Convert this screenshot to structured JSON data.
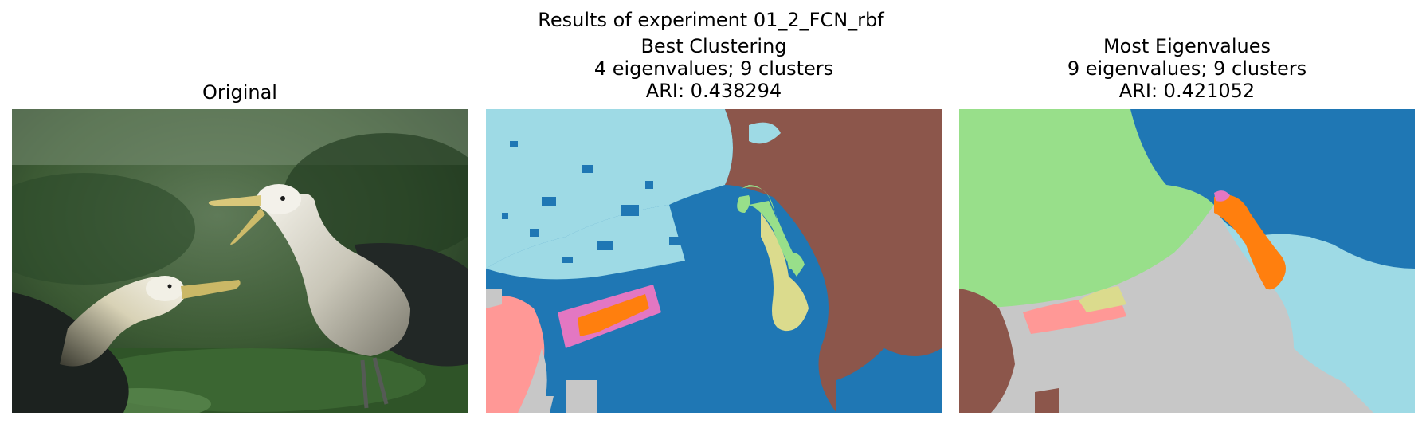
{
  "figure": {
    "suptitle": "Results of experiment 01_2_FCN_rbf"
  },
  "panels": [
    {
      "title_lines": [
        "Original"
      ]
    },
    {
      "title_lines": [
        "Best Clustering",
        "4 eigenvalues; 9 clusters",
        "ARI: 0.438294"
      ]
    },
    {
      "title_lines": [
        "Most Eigenvalues",
        "9 eigenvalues; 9 clusters",
        "ARI: 0.421052"
      ]
    }
  ],
  "palette": {
    "light_blue": "#9edae5",
    "blue": "#1f77b4",
    "brown": "#8c564b",
    "light_green": "#98df8a",
    "khaki": "#dbdb8d",
    "orange": "#ff7f0e",
    "pink": "#e377c2",
    "salmon": "#ff9896",
    "gray": "#c7c7c7"
  }
}
